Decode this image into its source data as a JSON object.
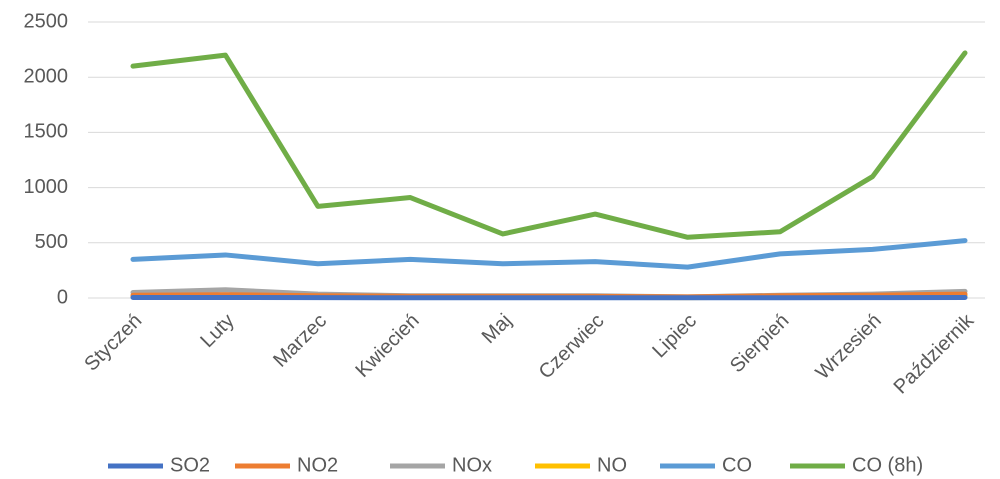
{
  "chart_data": {
    "type": "line",
    "categories": [
      "Styczeń",
      "Luty",
      "Marzec",
      "Kwiecień",
      "Maj",
      "Czerwiec",
      "Lipiec",
      "Sierpień",
      "Wrzesień",
      "Październik"
    ],
    "series": [
      {
        "name": "SO2",
        "color": "#4472c4",
        "values": [
          5,
          5,
          3,
          2,
          2,
          2,
          2,
          2,
          3,
          5
        ]
      },
      {
        "name": "NO2",
        "color": "#ed7d31",
        "values": [
          25,
          30,
          20,
          15,
          15,
          15,
          10,
          20,
          25,
          35
        ]
      },
      {
        "name": "NOx",
        "color": "#a5a5a5",
        "values": [
          50,
          75,
          35,
          20,
          20,
          20,
          10,
          25,
          35,
          60
        ]
      },
      {
        "name": "NO",
        "color": "#ffc000",
        "values": [
          15,
          20,
          10,
          5,
          5,
          5,
          3,
          8,
          10,
          20
        ]
      },
      {
        "name": "CO",
        "color": "#5b9bd5",
        "values": [
          350,
          390,
          310,
          350,
          310,
          330,
          280,
          400,
          440,
          520
        ]
      },
      {
        "name": "CO (8h)",
        "color": "#70ad47",
        "values": [
          2100,
          2200,
          830,
          910,
          580,
          760,
          550,
          600,
          1100,
          2220
        ]
      }
    ],
    "ylim": [
      0,
      2500
    ],
    "yticks": [
      0,
      500,
      1000,
      1500,
      2000,
      2500
    ],
    "grid": true,
    "legend": "bottom"
  }
}
